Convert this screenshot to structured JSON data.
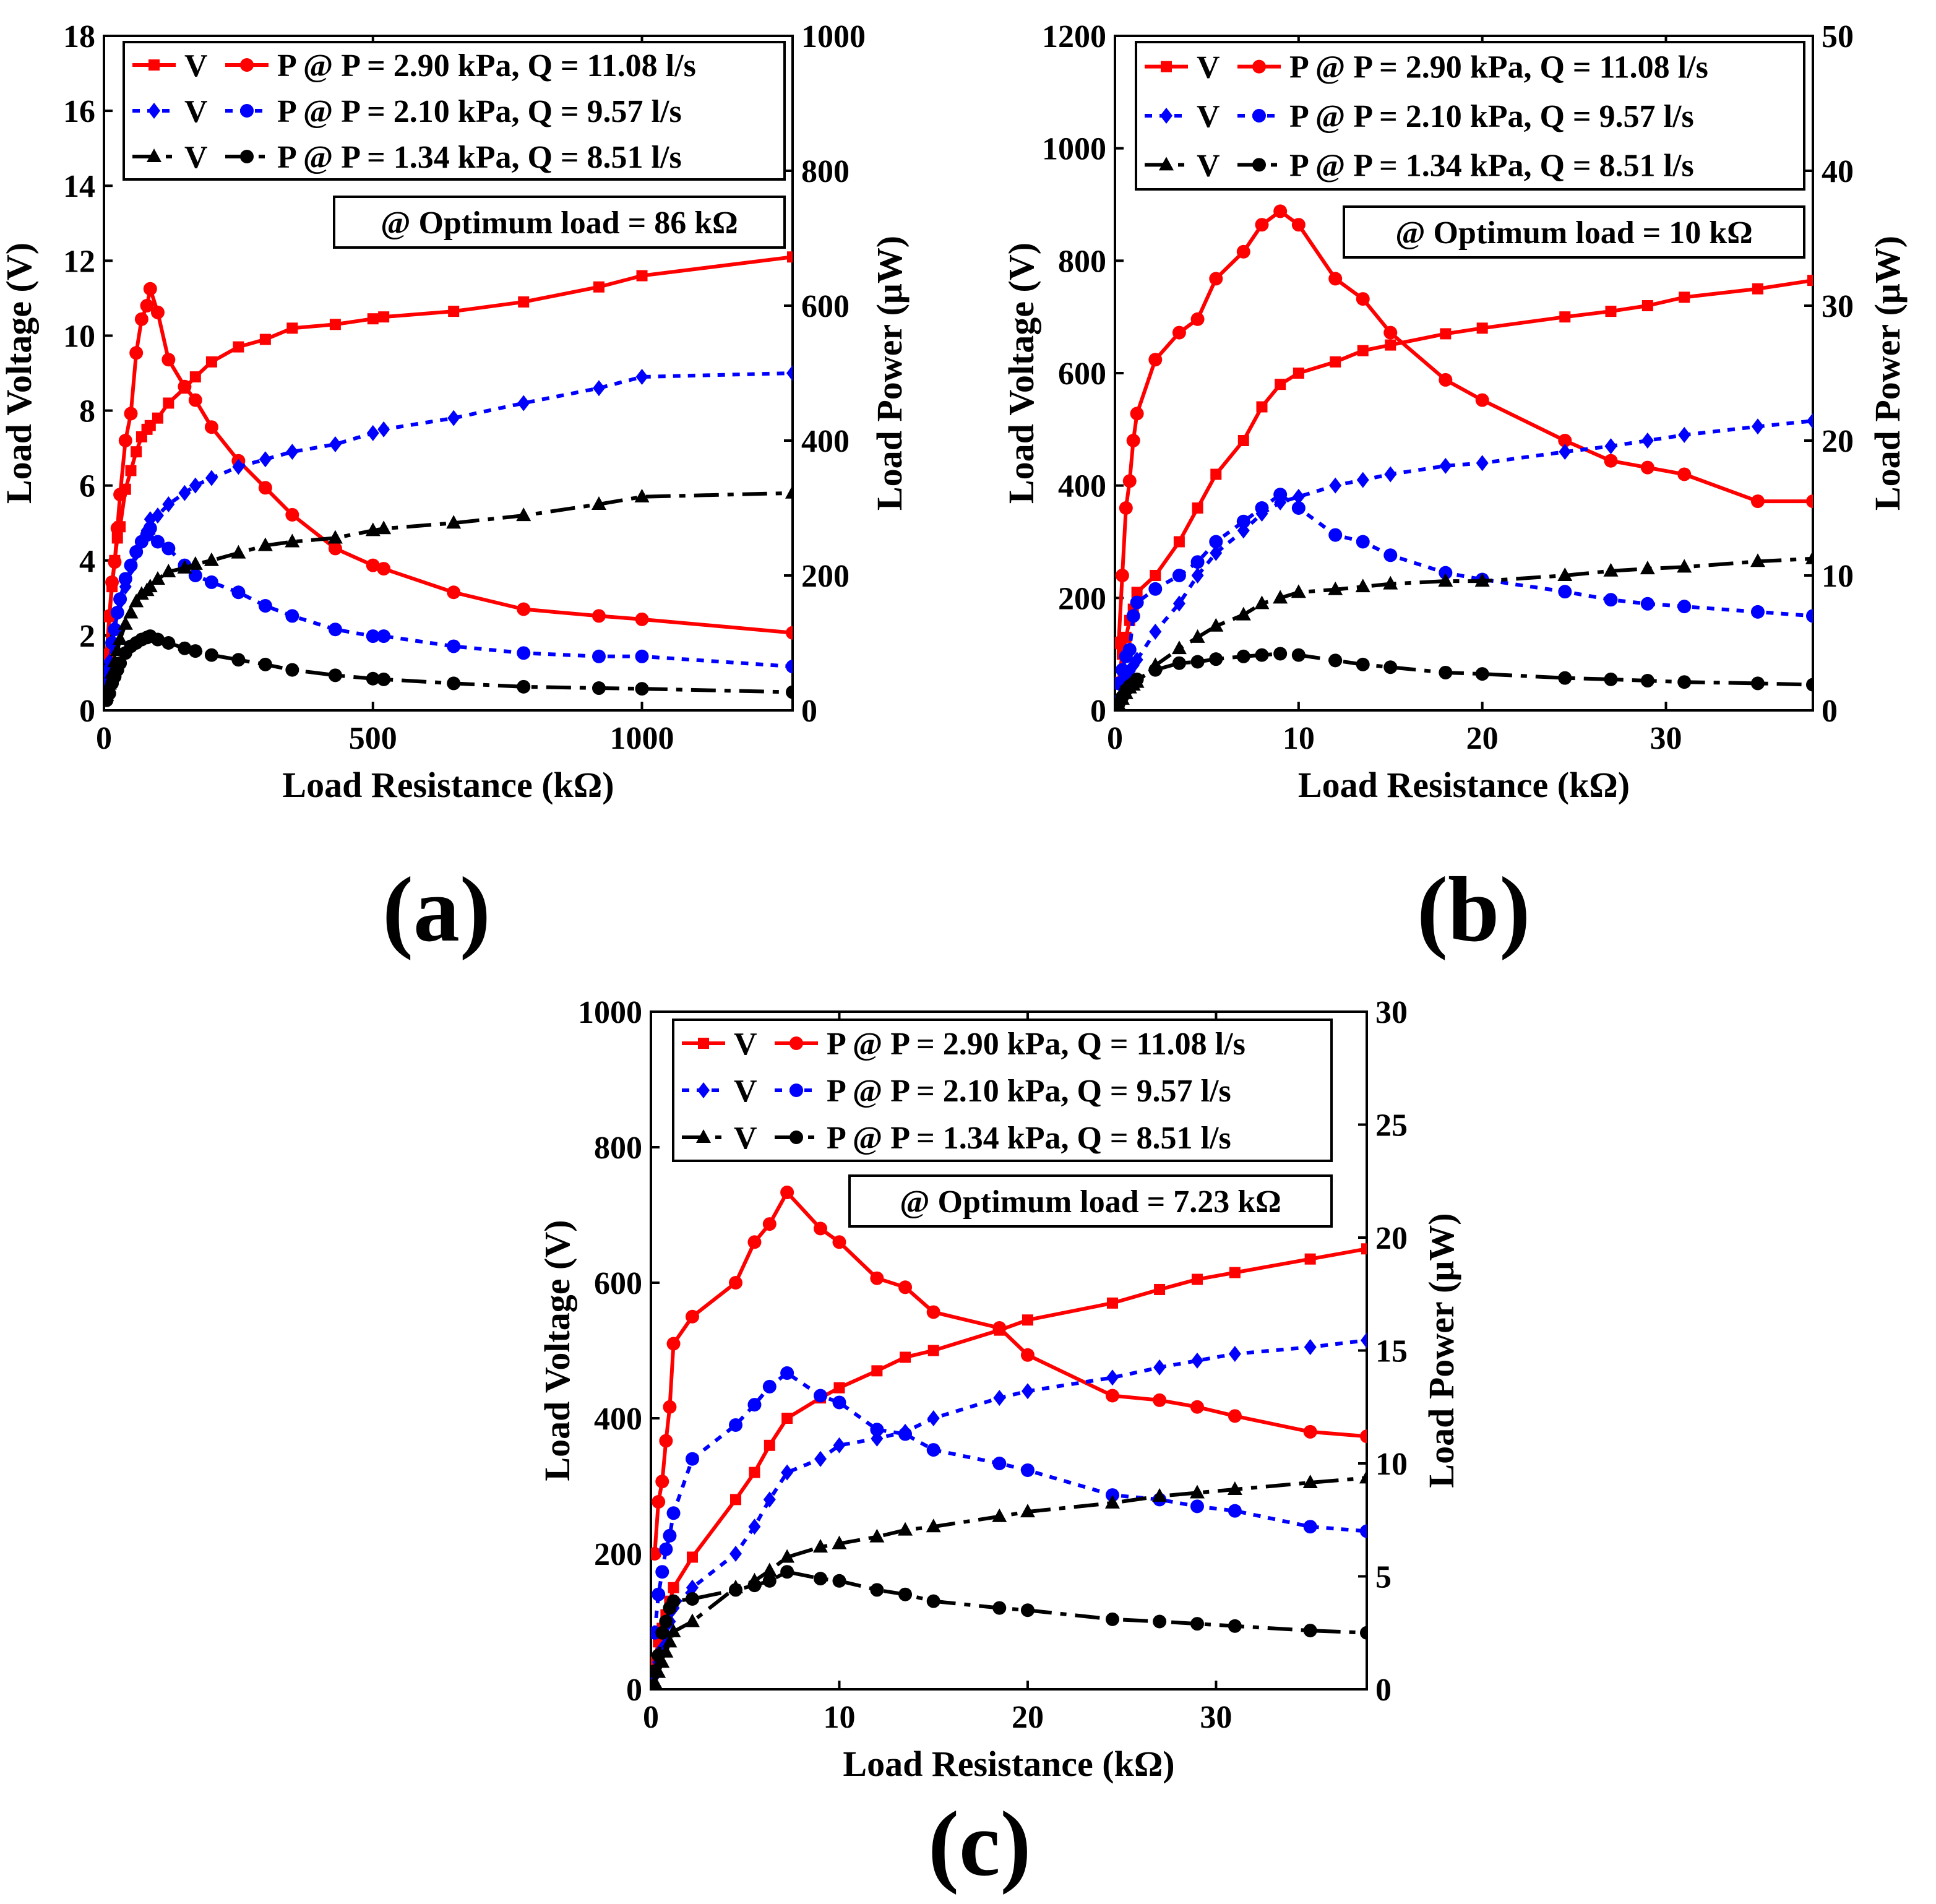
{
  "legend_labels": {
    "v": "V",
    "p": "P",
    "s1": "@ P = 2.90 kPa, Q = 11.08 l/s",
    "s2": "@ P = 2.10 kPa, Q = 9.57 l/s",
    "s3": "@ P = 1.34 kPa, Q = 8.51 l/s"
  },
  "colors": {
    "s1": "#ff0000",
    "s2": "#0000ff",
    "s3": "#000000"
  },
  "chart_data": [
    {
      "panel": "(a)",
      "type": "line",
      "xlabel": "Load Resistance (kΩ)",
      "ylabel": "Load Voltage (V)",
      "y2label": "Load Power (μW)",
      "xlim": [
        0,
        1280
      ],
      "ylim": [
        0,
        18
      ],
      "y2lim": [
        0,
        1000
      ],
      "xticks": [
        0,
        500,
        1000
      ],
      "yticks": [
        0,
        2,
        4,
        6,
        8,
        10,
        12,
        14,
        16,
        18
      ],
      "y2ticks": [
        0,
        200,
        400,
        600,
        800,
        1000
      ],
      "annotation": "@ Optimum load = 86 kΩ",
      "x": [
        5,
        10,
        15,
        20,
        25,
        30,
        40,
        50,
        60,
        70,
        80,
        86,
        100,
        120,
        150,
        170,
        200,
        250,
        300,
        350,
        430,
        500,
        520,
        650,
        780,
        920,
        1000,
        1280
      ],
      "series": [
        {
          "name": "s1",
          "voltage": [
            1.5,
            2.5,
            3.3,
            4.0,
            4.6,
            4.9,
            5.9,
            6.4,
            6.9,
            7.3,
            7.5,
            7.6,
            7.8,
            8.2,
            8.6,
            8.9,
            9.3,
            9.7,
            9.9,
            10.2,
            10.3,
            10.45,
            10.5,
            10.65,
            10.9,
            11.3,
            11.6,
            12.1
          ],
          "power": [
            80,
            140,
            190,
            220,
            270,
            320,
            400,
            440,
            530,
            580,
            600,
            625,
            590,
            520,
            480,
            460,
            420,
            370,
            330,
            290,
            240,
            215,
            210,
            175,
            150,
            140,
            135,
            115
          ]
        },
        {
          "name": "s2",
          "voltage": [
            0.9,
            1.3,
            1.8,
            2.2,
            2.6,
            2.9,
            3.3,
            3.8,
            4.2,
            4.5,
            4.8,
            5.1,
            5.2,
            5.5,
            5.8,
            6.0,
            6.2,
            6.5,
            6.7,
            6.9,
            7.1,
            7.4,
            7.5,
            7.8,
            8.2,
            8.6,
            8.9,
            9.0
          ],
          "power": [
            40,
            60,
            100,
            120,
            145,
            165,
            195,
            215,
            235,
            250,
            260,
            270,
            250,
            240,
            215,
            200,
            190,
            175,
            155,
            140,
            120,
            110,
            110,
            95,
            85,
            80,
            80,
            65
          ]
        },
        {
          "name": "s3",
          "voltage": [
            0.4,
            0.7,
            1.0,
            1.3,
            1.6,
            1.9,
            2.3,
            2.6,
            2.9,
            3.1,
            3.2,
            3.3,
            3.5,
            3.7,
            3.8,
            3.9,
            4.0,
            4.2,
            4.4,
            4.5,
            4.6,
            4.8,
            4.85,
            5.0,
            5.2,
            5.5,
            5.7,
            5.8
          ],
          "power": [
            15,
            25,
            40,
            50,
            60,
            70,
            85,
            95,
            100,
            105,
            108,
            110,
            105,
            100,
            92,
            88,
            82,
            75,
            68,
            60,
            52,
            47,
            46,
            40,
            35,
            33,
            32,
            27
          ]
        }
      ]
    },
    {
      "panel": "(b)",
      "type": "line",
      "xlabel": "Load Resistance (kΩ)",
      "ylabel": "Load Voltage (V)",
      "y2label": "Load Power (μW)",
      "xlim": [
        0,
        38
      ],
      "ylim": [
        0,
        1200
      ],
      "y2lim": [
        0,
        50
      ],
      "xticks": [
        0,
        10,
        20,
        30
      ],
      "yticks": [
        0,
        200,
        400,
        600,
        800,
        1000,
        1200
      ],
      "y2ticks": [
        0,
        10,
        20,
        30,
        40,
        50
      ],
      "annotation": "@ Optimum load = 10 kΩ",
      "x": [
        0.2,
        0.4,
        0.6,
        0.8,
        1.0,
        1.2,
        2.2,
        3.5,
        4.5,
        5.5,
        7.0,
        8.0,
        9.0,
        10.0,
        12.0,
        13.5,
        15.0,
        18.0,
        20.0,
        24.5,
        27.0,
        29.0,
        31.0,
        35.0,
        38.0
      ],
      "series": [
        {
          "name": "s1",
          "voltage": [
            50,
            100,
            130,
            160,
            180,
            210,
            240,
            300,
            360,
            420,
            480,
            540,
            580,
            600,
            620,
            640,
            650,
            670,
            680,
            700,
            710,
            720,
            735,
            750,
            765
          ],
          "power": [
            5,
            10,
            15,
            17,
            20,
            22,
            26,
            28,
            29,
            32,
            34,
            36,
            37,
            36,
            32,
            30.5,
            28,
            24.5,
            23,
            20,
            18.5,
            18,
            17.5,
            15.5,
            15.5
          ]
        },
        {
          "name": "s2",
          "voltage": [
            20,
            40,
            60,
            70,
            80,
            90,
            140,
            190,
            240,
            280,
            320,
            350,
            370,
            380,
            400,
            410,
            420,
            435,
            440,
            460,
            470,
            480,
            490,
            505,
            515
          ],
          "power": [
            2,
            3,
            4,
            4.5,
            7,
            8,
            9,
            10,
            11,
            12.5,
            14,
            15,
            16,
            15,
            13,
            12.5,
            11.5,
            10.2,
            9.7,
            8.8,
            8.2,
            7.9,
            7.7,
            7.3,
            7
          ]
        },
        {
          "name": "s3",
          "voltage": [
            10,
            20,
            30,
            40,
            45,
            50,
            80,
            110,
            130,
            150,
            170,
            190,
            200,
            210,
            215,
            220,
            225,
            230,
            230,
            240,
            248,
            252,
            255,
            265,
            270
          ],
          "power": [
            0.5,
            1,
            1.5,
            1.8,
            2,
            2.3,
            3,
            3.5,
            3.6,
            3.8,
            4,
            4.1,
            4.2,
            4.1,
            3.7,
            3.4,
            3.2,
            2.8,
            2.7,
            2.4,
            2.3,
            2.2,
            2.1,
            2,
            1.9
          ]
        }
      ]
    },
    {
      "panel": "(c)",
      "type": "line",
      "xlabel": "Load Resistance (kΩ)",
      "ylabel": "Load Voltage (V)",
      "y2label": "Load Power (μW)",
      "xlim": [
        0,
        38
      ],
      "ylim": [
        0,
        1000
      ],
      "y2lim": [
        0,
        30
      ],
      "xticks": [
        0,
        10,
        20,
        30
      ],
      "yticks": [
        0,
        200,
        400,
        600,
        800,
        1000
      ],
      "y2ticks": [
        0,
        5,
        10,
        15,
        20,
        25,
        30
      ],
      "annotation": "@ Optimum load = 7.23 kΩ",
      "x": [
        0.2,
        0.4,
        0.6,
        0.8,
        1.0,
        1.2,
        2.2,
        4.5,
        5.5,
        6.3,
        7.23,
        9.0,
        10.0,
        12.0,
        13.5,
        15.0,
        18.5,
        20.0,
        24.5,
        27.0,
        29.0,
        31.0,
        35.0,
        38.0
      ],
      "series": [
        {
          "name": "s1",
          "voltage": [
            40,
            70,
            90,
            110,
            130,
            150,
            195,
            280,
            320,
            360,
            400,
            430,
            445,
            470,
            490,
            500,
            530,
            545,
            570,
            590,
            605,
            615,
            635,
            650
          ],
          "power": [
            6,
            8.3,
            9.2,
            11,
            12.5,
            15.3,
            16.5,
            18,
            19.8,
            20.6,
            22,
            20.4,
            19.8,
            18.2,
            17.8,
            16.7,
            16,
            14.8,
            13,
            12.8,
            12.5,
            12.1,
            11.4,
            11.2
          ]
        },
        {
          "name": "s2",
          "voltage": [
            20,
            40,
            60,
            80,
            100,
            120,
            150,
            200,
            240,
            280,
            320,
            340,
            360,
            370,
            380,
            400,
            430,
            440,
            460,
            475,
            485,
            495,
            505,
            515
          ],
          "power": [
            2.5,
            4.2,
            5.2,
            6.2,
            6.8,
            7.8,
            10.2,
            11.7,
            12.6,
            13.4,
            14,
            13,
            12.7,
            11.5,
            11.3,
            10.6,
            10,
            9.7,
            8.6,
            8.4,
            8.1,
            7.9,
            7.2,
            7
          ]
        },
        {
          "name": "s3",
          "voltage": [
            10,
            25,
            40,
            55,
            70,
            85,
            100,
            150,
            160,
            175,
            195,
            210,
            215,
            225,
            235,
            240,
            255,
            262,
            275,
            285,
            290,
            295,
            305,
            312
          ],
          "power": [
            0.8,
            1.5,
            2.5,
            3,
            3.6,
            3.9,
            4,
            4.4,
            4.6,
            4.8,
            5.2,
            4.9,
            4.8,
            4.4,
            4.2,
            3.9,
            3.6,
            3.5,
            3.1,
            3,
            2.9,
            2.8,
            2.6,
            2.5
          ]
        }
      ]
    }
  ]
}
